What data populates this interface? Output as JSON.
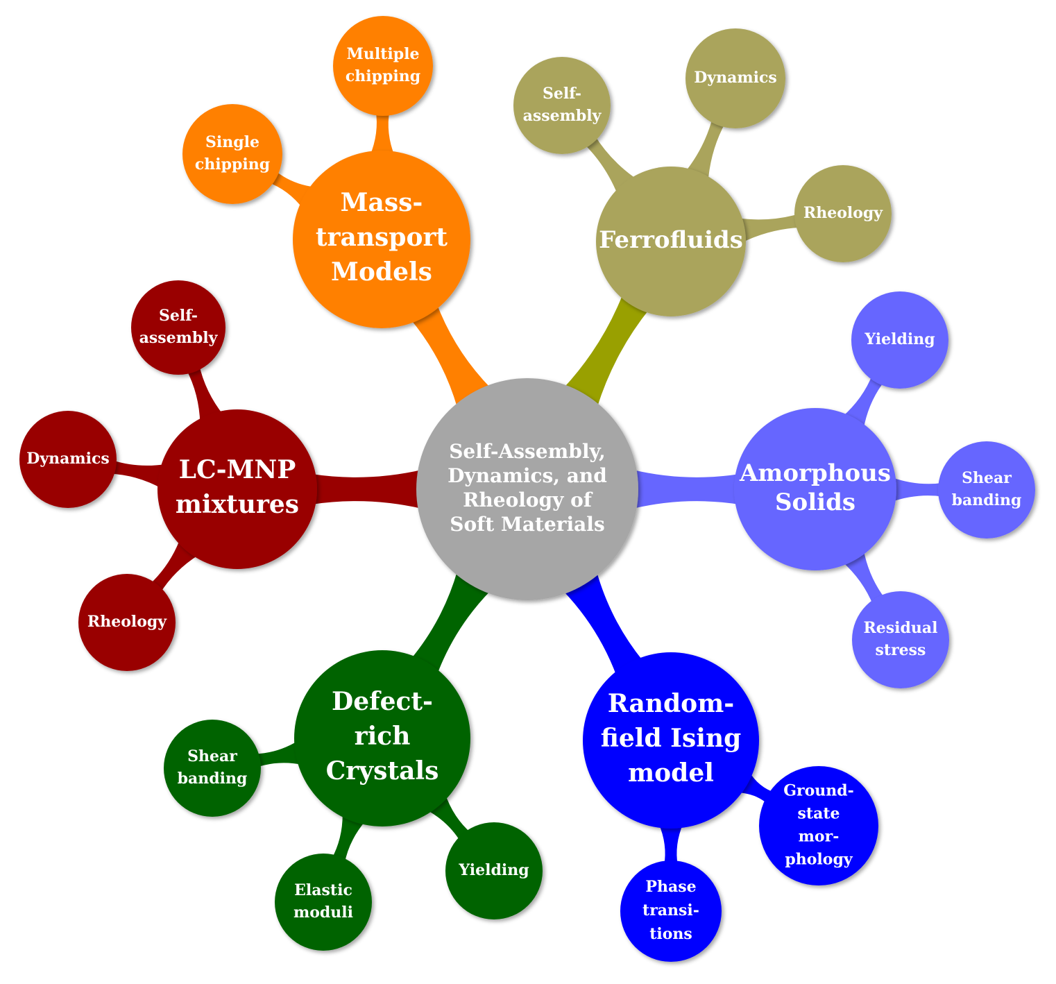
{
  "colors": {
    "center": "#a6a6a6",
    "orange": "#ff8000",
    "olive": "#aaa45c",
    "olive_link": "#99a000",
    "periwinkle": "#6666ff",
    "blue": "#0000ff",
    "green": "#006400",
    "darkred": "#990000"
  },
  "center": {
    "lines": [
      "Self-Assembly,",
      "Dynamics, and",
      "Rheology of",
      "Soft Materials"
    ]
  },
  "branches": [
    {
      "id": "mass-transport",
      "color": "orange",
      "lines": [
        "Mass-",
        "transport",
        "Models"
      ],
      "children": [
        {
          "id": "single-chipping",
          "lines": [
            "Single",
            "chipping"
          ]
        },
        {
          "id": "multiple-chipping",
          "lines": [
            "Multiple",
            "chipping"
          ]
        }
      ]
    },
    {
      "id": "ferrofluids",
      "color": "olive",
      "lines": [
        "Ferrofluids"
      ],
      "children": [
        {
          "id": "self-assembly",
          "lines": [
            "Self-",
            "assembly"
          ]
        },
        {
          "id": "dynamics",
          "lines": [
            "Dynamics"
          ]
        },
        {
          "id": "rheology",
          "lines": [
            "Rheology"
          ]
        }
      ]
    },
    {
      "id": "amorphous-solids",
      "color": "periwinkle",
      "lines": [
        "Amorphous",
        "Solids"
      ],
      "children": [
        {
          "id": "yielding",
          "lines": [
            "Yielding"
          ]
        },
        {
          "id": "shear-banding",
          "lines": [
            "Shear",
            "banding"
          ]
        },
        {
          "id": "residual-stress",
          "lines": [
            "Residual",
            "stress"
          ]
        }
      ]
    },
    {
      "id": "random-field-ising",
      "color": "blue",
      "lines": [
        "Random-",
        "field Ising",
        "model"
      ],
      "children": [
        {
          "id": "ground-state-morphology",
          "lines": [
            "Ground-",
            "state",
            "mor-",
            "phology"
          ]
        },
        {
          "id": "phase-transitions",
          "lines": [
            "Phase",
            "transi-",
            "tions"
          ]
        }
      ]
    },
    {
      "id": "defect-rich-crystals",
      "color": "green",
      "lines": [
        "Defect-",
        "rich",
        "Crystals"
      ],
      "children": [
        {
          "id": "shear-banding",
          "lines": [
            "Shear",
            "banding"
          ]
        },
        {
          "id": "elastic-moduli",
          "lines": [
            "Elastic",
            "moduli"
          ]
        },
        {
          "id": "yielding",
          "lines": [
            "Yielding"
          ]
        }
      ]
    },
    {
      "id": "lc-mnp-mixtures",
      "color": "darkred",
      "lines": [
        "LC-MNP",
        "mixtures"
      ],
      "children": [
        {
          "id": "self-assembly",
          "lines": [
            "Self-",
            "assembly"
          ]
        },
        {
          "id": "dynamics",
          "lines": [
            "Dynamics"
          ]
        },
        {
          "id": "rheology",
          "lines": [
            "Rheology"
          ]
        }
      ]
    }
  ]
}
